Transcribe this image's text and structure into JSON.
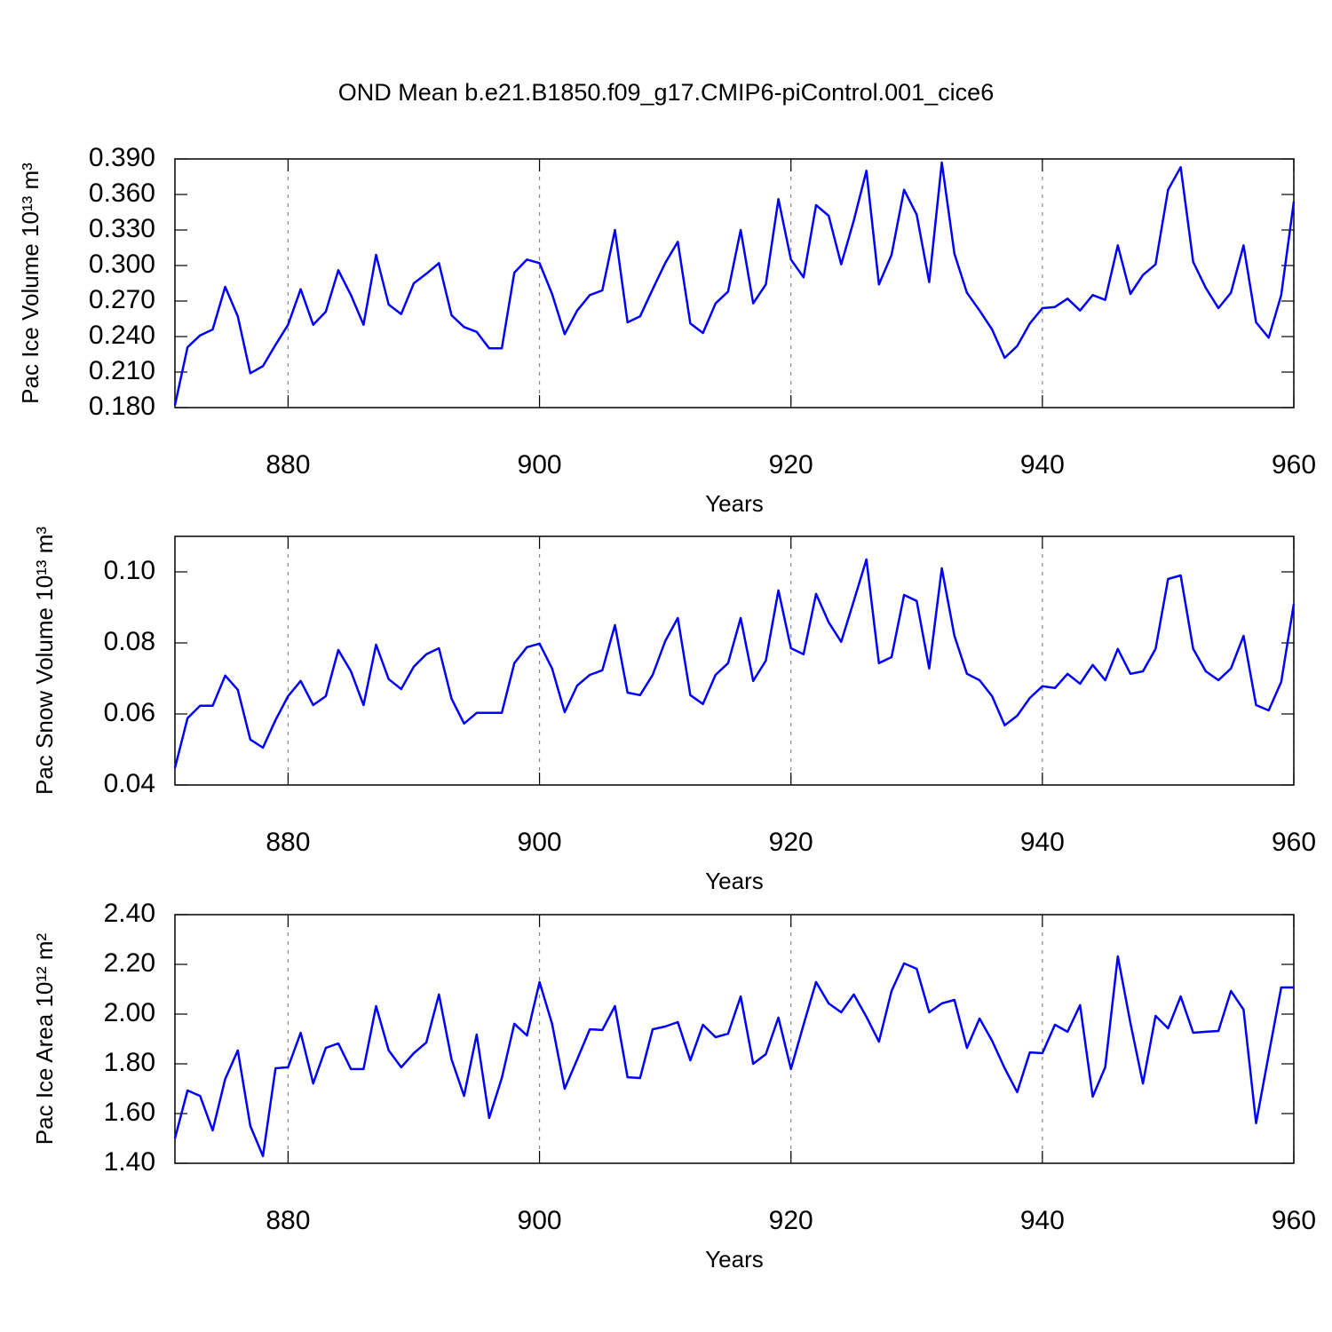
{
  "chart_data": [
    {
      "type": "line",
      "title": "OND Mean b.e21.B1850.f09_g17.CMIP6-piControl.001_cice6",
      "ylabel": "Pac Ice Volume 10¹³ m³",
      "xlabel": "Years",
      "color": "#0000ff",
      "grid": true,
      "xlim": [
        871,
        960
      ],
      "xticks": [
        880,
        900,
        920,
        940,
        960
      ],
      "ylim": [
        0.18,
        0.39
      ],
      "yticks": [
        {
          "value": 0.18,
          "label": "0.180"
        },
        {
          "value": 0.21,
          "label": "0.210"
        },
        {
          "value": 0.24,
          "label": "0.240"
        },
        {
          "value": 0.27,
          "label": "0.270"
        },
        {
          "value": 0.3,
          "label": "0.300"
        },
        {
          "value": 0.33,
          "label": "0.330"
        },
        {
          "value": 0.36,
          "label": "0.360"
        },
        {
          "value": 0.39,
          "label": "0.390"
        }
      ],
      "x": [
        871,
        872,
        873,
        874,
        875,
        876,
        877,
        878,
        879,
        880,
        881,
        882,
        883,
        884,
        885,
        886,
        887,
        888,
        889,
        890,
        891,
        892,
        893,
        894,
        895,
        896,
        897,
        898,
        899,
        900,
        901,
        902,
        903,
        904,
        905,
        906,
        907,
        908,
        909,
        910,
        911,
        912,
        913,
        914,
        915,
        916,
        917,
        918,
        919,
        920,
        921,
        922,
        923,
        924,
        925,
        926,
        927,
        928,
        929,
        930,
        931,
        932,
        933,
        934,
        935,
        936,
        937,
        938,
        939,
        940,
        941,
        942,
        943,
        944,
        945,
        946,
        947,
        948,
        949,
        950,
        951,
        952,
        953,
        954,
        955,
        956,
        957,
        958,
        959,
        960
      ],
      "values": [
        0.182,
        0.231,
        0.241,
        0.246,
        0.282,
        0.257,
        0.209,
        0.215,
        0.233,
        0.25,
        0.28,
        0.25,
        0.261,
        0.296,
        0.275,
        0.25,
        0.309,
        0.267,
        0.259,
        0.285,
        0.293,
        0.302,
        0.258,
        0.248,
        0.244,
        0.23,
        0.23,
        0.294,
        0.305,
        0.302,
        0.276,
        0.242,
        0.262,
        0.275,
        0.279,
        0.33,
        0.252,
        0.257,
        0.28,
        0.302,
        0.32,
        0.251,
        0.243,
        0.268,
        0.278,
        0.33,
        0.268,
        0.284,
        0.356,
        0.305,
        0.29,
        0.351,
        0.342,
        0.301,
        0.338,
        0.38,
        0.284,
        0.309,
        0.364,
        0.343,
        0.286,
        0.387,
        0.31,
        0.277,
        0.262,
        0.246,
        0.222,
        0.232,
        0.251,
        0.264,
        0.265,
        0.272,
        0.262,
        0.275,
        0.271,
        0.317,
        0.276,
        0.292,
        0.301,
        0.364,
        0.383,
        0.303,
        0.281,
        0.264,
        0.277,
        0.317,
        0.252,
        0.239,
        0.275,
        0.354
      ]
    },
    {
      "type": "line",
      "ylabel": "Pac Snow Volume 10¹³ m³",
      "xlabel": "Years",
      "color": "#0000ff",
      "grid": true,
      "xlim": [
        871,
        960
      ],
      "xticks": [
        880,
        900,
        920,
        940,
        960
      ],
      "ylim": [
        0.04,
        0.11
      ],
      "yticks": [
        0.04,
        0.06,
        0.08,
        {
          "value": 0.1,
          "label": "0.10"
        }
      ],
      "x": [
        871,
        872,
        873,
        874,
        875,
        876,
        877,
        878,
        879,
        880,
        881,
        882,
        883,
        884,
        885,
        886,
        887,
        888,
        889,
        890,
        891,
        892,
        893,
        894,
        895,
        896,
        897,
        898,
        899,
        900,
        901,
        902,
        903,
        904,
        905,
        906,
        907,
        908,
        909,
        910,
        911,
        912,
        913,
        914,
        915,
        916,
        917,
        918,
        919,
        920,
        921,
        922,
        923,
        924,
        925,
        926,
        927,
        928,
        929,
        930,
        931,
        932,
        933,
        934,
        935,
        936,
        937,
        938,
        939,
        940,
        941,
        942,
        943,
        944,
        945,
        946,
        947,
        948,
        949,
        950,
        951,
        952,
        953,
        954,
        955,
        956,
        957,
        958,
        959,
        960
      ],
      "values": [
        0.0448,
        0.0588,
        0.0623,
        0.0623,
        0.0708,
        0.0668,
        0.0528,
        0.0505,
        0.0583,
        0.065,
        0.0693,
        0.0625,
        0.065,
        0.078,
        0.072,
        0.0625,
        0.0795,
        0.0698,
        0.067,
        0.0733,
        0.0768,
        0.0785,
        0.0643,
        0.0573,
        0.0603,
        0.0603,
        0.0603,
        0.0743,
        0.0788,
        0.0798,
        0.0728,
        0.0605,
        0.068,
        0.071,
        0.0723,
        0.085,
        0.066,
        0.0653,
        0.071,
        0.0805,
        0.087,
        0.0653,
        0.0628,
        0.071,
        0.0743,
        0.087,
        0.0693,
        0.075,
        0.0948,
        0.0785,
        0.0768,
        0.0938,
        0.0858,
        0.0803,
        0.0918,
        0.1035,
        0.0743,
        0.076,
        0.0935,
        0.0918,
        0.0728,
        0.101,
        0.082,
        0.0713,
        0.0695,
        0.065,
        0.0568,
        0.0595,
        0.0645,
        0.0678,
        0.0673,
        0.0713,
        0.0685,
        0.0738,
        0.0695,
        0.0783,
        0.0713,
        0.072,
        0.0783,
        0.098,
        0.099,
        0.0783,
        0.072,
        0.0695,
        0.0728,
        0.082,
        0.0625,
        0.061,
        0.069,
        0.091
      ]
    },
    {
      "type": "line",
      "ylabel": "Pac Ice Area 10¹² m²",
      "xlabel": "Years",
      "color": "#0000ff",
      "grid": true,
      "xlim": [
        871,
        960
      ],
      "xticks": [
        880,
        900,
        920,
        940,
        960
      ],
      "ylim": [
        1.4,
        2.4
      ],
      "yticks": [
        {
          "value": 1.4,
          "label": "1.40"
        },
        {
          "value": 1.6,
          "label": "1.60"
        },
        {
          "value": 1.8,
          "label": "1.80"
        },
        {
          "value": 2.0,
          "label": "2.00"
        },
        {
          "value": 2.2,
          "label": "2.20"
        },
        {
          "value": 2.4,
          "label": "2.40"
        }
      ],
      "x": [
        871,
        872,
        873,
        874,
        875,
        876,
        877,
        878,
        879,
        880,
        881,
        882,
        883,
        884,
        885,
        886,
        887,
        888,
        889,
        890,
        891,
        892,
        893,
        894,
        895,
        896,
        897,
        898,
        899,
        900,
        901,
        902,
        903,
        904,
        905,
        906,
        907,
        908,
        909,
        910,
        911,
        912,
        913,
        914,
        915,
        916,
        917,
        918,
        919,
        920,
        921,
        922,
        923,
        924,
        925,
        926,
        927,
        928,
        929,
        930,
        931,
        932,
        933,
        934,
        935,
        936,
        937,
        938,
        939,
        940,
        941,
        942,
        943,
        944,
        945,
        946,
        947,
        948,
        949,
        950,
        951,
        952,
        953,
        954,
        955,
        956,
        957,
        958,
        959,
        960
      ],
      "values": [
        1.5,
        1.693,
        1.671,
        1.532,
        1.739,
        1.854,
        1.55,
        1.429,
        1.782,
        1.786,
        1.925,
        1.721,
        1.864,
        1.882,
        1.779,
        1.779,
        2.032,
        1.854,
        1.786,
        1.843,
        1.886,
        2.079,
        1.818,
        1.671,
        1.918,
        1.582,
        1.743,
        1.961,
        1.914,
        2.129,
        1.961,
        1.7,
        1.818,
        1.939,
        1.936,
        2.032,
        1.746,
        1.743,
        1.939,
        1.95,
        1.968,
        1.814,
        1.957,
        1.907,
        1.921,
        2.071,
        1.8,
        1.839,
        1.986,
        1.779,
        1.957,
        2.129,
        2.043,
        2.007,
        2.079,
        1.989,
        1.889,
        2.093,
        2.204,
        2.182,
        2.007,
        2.043,
        2.057,
        1.864,
        1.982,
        1.893,
        1.782,
        1.686,
        1.846,
        1.843,
        1.957,
        1.929,
        2.036,
        1.668,
        1.786,
        2.232,
        1.964,
        1.721,
        1.993,
        1.943,
        2.071,
        1.925,
        1.929,
        1.932,
        2.093,
        2.018,
        1.561,
        1.836,
        2.107,
        2.107
      ]
    }
  ]
}
